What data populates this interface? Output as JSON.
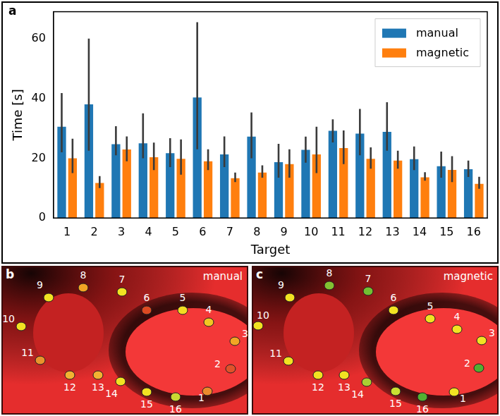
{
  "chart_data": {
    "type": "bar",
    "panel": "a",
    "x_label": "Target",
    "y_label": "Time [s]",
    "categories": [
      "1",
      "2",
      "3",
      "4",
      "5",
      "6",
      "7",
      "8",
      "9",
      "10",
      "11",
      "12",
      "13",
      "14",
      "15",
      "16"
    ],
    "series": [
      {
        "name": "manual",
        "color": "#1f77b4",
        "values": [
          30.5,
          38,
          24.7,
          25,
          21.7,
          40.3,
          21.3,
          27.2,
          18.7,
          22.8,
          29.2,
          28.2,
          28.8,
          19.7,
          17.3,
          16.3
        ],
        "error_low": [
          22,
          22.5,
          21,
          20,
          17,
          23,
          17,
          20,
          13.5,
          18.5,
          25.3,
          21,
          22.5,
          16,
          13.5,
          13.7
        ],
        "error_high": [
          41.8,
          60,
          30.7,
          35,
          26.7,
          65.5,
          27.3,
          35.3,
          24.8,
          27.2,
          33,
          36.5,
          38.7,
          23.9,
          22.2,
          19.2
        ]
      },
      {
        "name": "magnetic",
        "color": "#ff7f0e",
        "values": [
          20,
          11.7,
          22.9,
          20.3,
          19.8,
          19,
          13.3,
          15.2,
          18,
          21.3,
          23.4,
          19.8,
          19.2,
          13.6,
          16.1,
          11.4
        ],
        "error_low": [
          15,
          10,
          19,
          16,
          14.5,
          16,
          12,
          13.5,
          13.5,
          15,
          18,
          16.5,
          16.5,
          12.5,
          12,
          9.8
        ],
        "error_high": [
          26.5,
          14,
          27.3,
          25.2,
          26.3,
          23,
          15.2,
          17.6,
          23,
          30.5,
          29.3,
          23.6,
          22.5,
          15.3,
          20.7,
          13.8
        ]
      }
    ],
    "ylim": [
      0,
      69
    ],
    "yticks": [
      0,
      20,
      40,
      60
    ],
    "grid": false,
    "legend": "upper right"
  },
  "diagrams": [
    {
      "panel": "b",
      "title": "manual",
      "points": [
        {
          "label": "1",
          "color": "#ec8a2c"
        },
        {
          "label": "2",
          "color": "#e0522a"
        },
        {
          "label": "3",
          "color": "#f2a524"
        },
        {
          "label": "4",
          "color": "#f2c622"
        },
        {
          "label": "5",
          "color": "#f2dc22"
        },
        {
          "label": "6",
          "color": "#dd4a22"
        },
        {
          "label": "7",
          "color": "#f2e222"
        },
        {
          "label": "8",
          "color": "#f2a424"
        },
        {
          "label": "9",
          "color": "#f2e222"
        },
        {
          "label": "10",
          "color": "#f2e222"
        },
        {
          "label": "11",
          "color": "#ea922c"
        },
        {
          "label": "12",
          "color": "#f2b232"
        },
        {
          "label": "13",
          "color": "#f2b232"
        },
        {
          "label": "14",
          "color": "#f2e222"
        },
        {
          "label": "15",
          "color": "#f2e222"
        },
        {
          "label": "16",
          "color": "#cad832"
        }
      ]
    },
    {
      "panel": "c",
      "title": "magnetic",
      "points": [
        {
          "label": "1",
          "color": "#f2e222"
        },
        {
          "label": "2",
          "color": "#52b032"
        },
        {
          "label": "3",
          "color": "#f2e222"
        },
        {
          "label": "4",
          "color": "#f2e222"
        },
        {
          "label": "5",
          "color": "#f2e222"
        },
        {
          "label": "6",
          "color": "#f2e222"
        },
        {
          "label": "7",
          "color": "#72c032"
        },
        {
          "label": "8",
          "color": "#82c232"
        },
        {
          "label": "9",
          "color": "#f2e222"
        },
        {
          "label": "10",
          "color": "#f2e222"
        },
        {
          "label": "11",
          "color": "#f2e222"
        },
        {
          "label": "12",
          "color": "#f2e222"
        },
        {
          "label": "13",
          "color": "#f2e222"
        },
        {
          "label": "14",
          "color": "#aad032"
        },
        {
          "label": "15",
          "color": "#cae032"
        },
        {
          "label": "16",
          "color": "#52b032"
        }
      ]
    }
  ]
}
